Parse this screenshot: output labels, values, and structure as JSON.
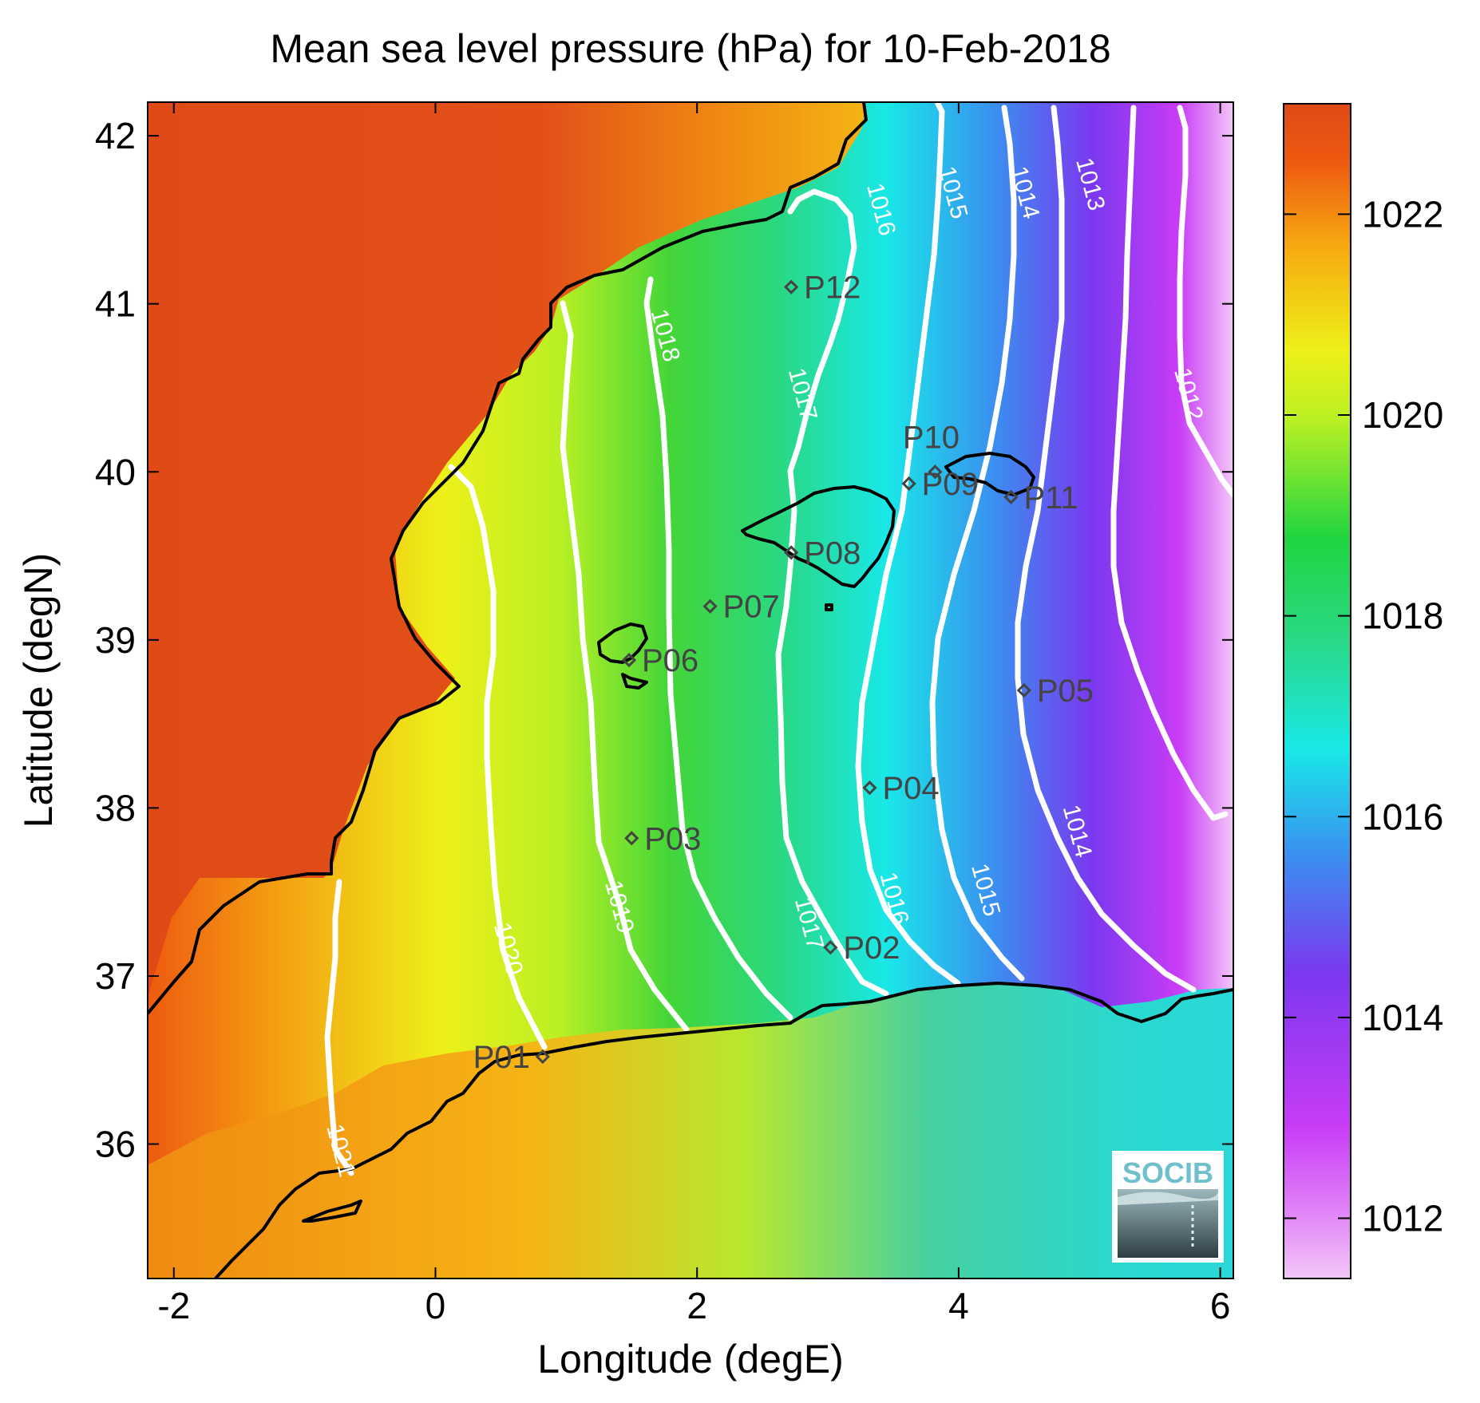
{
  "title": "Mean sea level pressure (hPa) for 10-Feb-2018",
  "x_axis": {
    "label": "Longitude (degE)",
    "ticks": [
      "-2",
      "0",
      "2",
      "4",
      "6"
    ],
    "tick_values": [
      -2,
      0,
      2,
      4,
      6
    ],
    "range": [
      -2.2,
      6.1
    ]
  },
  "y_axis": {
    "label": "Latitude (degN)",
    "ticks": [
      "36",
      "37",
      "38",
      "39",
      "40",
      "41",
      "42"
    ],
    "tick_values": [
      36,
      37,
      38,
      39,
      40,
      41,
      42
    ],
    "range": [
      35.2,
      42.2
    ]
  },
  "colorbar": {
    "ticks": [
      "1012",
      "1014",
      "1016",
      "1018",
      "1020",
      "1022"
    ],
    "tick_values": [
      1012,
      1014,
      1016,
      1018,
      1020,
      1022
    ],
    "range": [
      1011.4,
      1023.1
    ],
    "colors": [
      "#f3c6f8",
      "#c83cf6",
      "#7b38ef",
      "#3a8ff0",
      "#19e8e8",
      "#20d540",
      "#b8f024",
      "#eef018",
      "#f7a810",
      "#ee5a10",
      "#df4a16"
    ]
  },
  "logo": {
    "text": "SOCIB",
    "color": "#6fc0cc"
  },
  "chart_data": {
    "type": "heatmap",
    "variable": "Mean sea level pressure (hPa)",
    "date": "10-Feb-2018",
    "contour_levels": [
      1012,
      1013,
      1014,
      1015,
      1016,
      1017,
      1018,
      1019,
      1020,
      1021
    ],
    "contour_labels": [
      {
        "text": "1021",
        "lon": -0.78,
        "lat": 35.95
      },
      {
        "text": "1020",
        "lon": 0.5,
        "lat": 37.15
      },
      {
        "text": "1019",
        "lon": 1.35,
        "lat": 37.4
      },
      {
        "text": "1018",
        "lon": 1.7,
        "lat": 40.8
      },
      {
        "text": "1017",
        "lon": 2.75,
        "lat": 40.45
      },
      {
        "text": "1017",
        "lon": 2.8,
        "lat": 37.3
      },
      {
        "text": "1016",
        "lon": 3.35,
        "lat": 41.55
      },
      {
        "text": "1016",
        "lon": 3.45,
        "lat": 37.45
      },
      {
        "text": "1015",
        "lon": 3.9,
        "lat": 41.65
      },
      {
        "text": "1015",
        "lon": 4.15,
        "lat": 37.5
      },
      {
        "text": "1014",
        "lon": 4.45,
        "lat": 41.65
      },
      {
        "text": "1014",
        "lon": 4.85,
        "lat": 37.85
      },
      {
        "text": "1013",
        "lon": 4.95,
        "lat": 41.7
      },
      {
        "text": "1012",
        "lon": 5.7,
        "lat": 40.45
      }
    ],
    "stations": [
      {
        "name": "P01",
        "lon": 0.82,
        "lat": 36.52
      },
      {
        "name": "P02",
        "lon": 3.02,
        "lat": 37.17
      },
      {
        "name": "P03",
        "lon": 1.5,
        "lat": 37.82
      },
      {
        "name": "P04",
        "lon": 3.32,
        "lat": 38.12
      },
      {
        "name": "P05",
        "lon": 4.5,
        "lat": 38.7
      },
      {
        "name": "P06",
        "lon": 1.48,
        "lat": 38.88
      },
      {
        "name": "P07",
        "lon": 2.1,
        "lat": 39.2
      },
      {
        "name": "P08",
        "lon": 2.72,
        "lat": 39.52
      },
      {
        "name": "P09",
        "lon": 3.62,
        "lat": 39.93
      },
      {
        "name": "P10",
        "lon": 3.82,
        "lat": 40.0
      },
      {
        "name": "P11",
        "lon": 4.4,
        "lat": 39.85
      },
      {
        "name": "P12",
        "lon": 2.72,
        "lat": 41.1
      }
    ]
  }
}
